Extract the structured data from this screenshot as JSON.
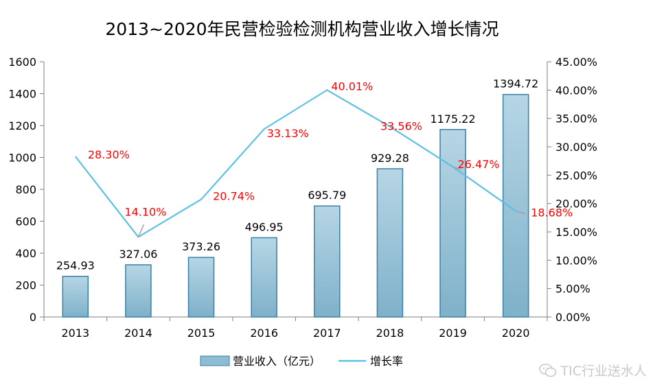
{
  "chart_data": {
    "type": "bar+line",
    "title": "2013~2020年民营检验检测机构营业收入增长情况",
    "categories": [
      "2013",
      "2014",
      "2015",
      "2016",
      "2017",
      "2018",
      "2019",
      "2020"
    ],
    "series": [
      {
        "name": "营业收入（亿元）",
        "type": "bar",
        "axis": "left",
        "values": [
          254.93,
          327.06,
          373.26,
          496.95,
          695.79,
          929.28,
          1175.22,
          1394.72
        ],
        "labels": [
          "254.93",
          "327.06",
          "373.26",
          "496.95",
          "695.79",
          "929.28",
          "1175.22",
          "1394.72"
        ],
        "color": "#8dbdd3",
        "border_color": "#3a7fa6"
      },
      {
        "name": "增长率",
        "type": "line",
        "axis": "right",
        "values": [
          28.3,
          14.1,
          20.74,
          33.13,
          40.01,
          33.56,
          26.47,
          18.68
        ],
        "labels": [
          "28.30%",
          "14.10%",
          "20.74%",
          "33.13%",
          "40.01%",
          "33.56%",
          "26.47%",
          "18.68%"
        ],
        "color": "#5bc0e3",
        "label_color": "#ff0000"
      }
    ],
    "y_left": {
      "range": [
        0,
        1600
      ],
      "ticks": [
        0,
        200,
        400,
        600,
        800,
        1000,
        1200,
        1400,
        1600
      ],
      "tick_labels": [
        "0",
        "200",
        "400",
        "600",
        "800",
        "1000",
        "1200",
        "1400",
        "1600"
      ]
    },
    "y_right": {
      "range": [
        0,
        45
      ],
      "ticks": [
        0,
        5,
        10,
        15,
        20,
        25,
        30,
        35,
        40,
        45
      ],
      "tick_labels": [
        "0.00%",
        "5.00%",
        "10.00%",
        "15.00%",
        "20.00%",
        "25.00%",
        "30.00%",
        "35.00%",
        "40.00%",
        "45.00%"
      ]
    },
    "legend_position": "bottom",
    "grid": false
  },
  "watermark": {
    "text": "TIC行业送水人",
    "icon": "wechat-icon"
  }
}
